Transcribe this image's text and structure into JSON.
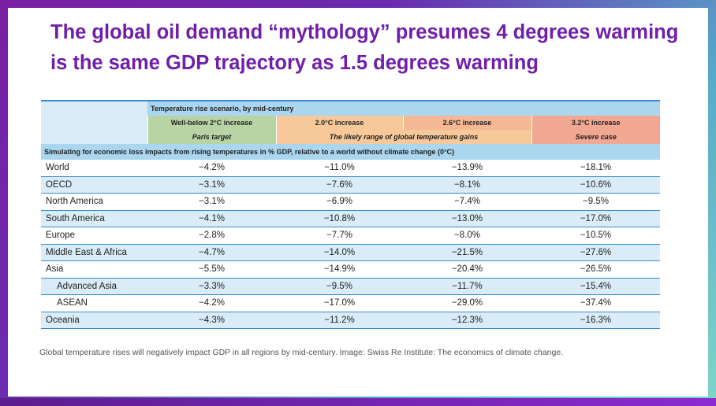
{
  "slide": {
    "title": "The global oil demand “mythology” presumes 4 degrees warming is the same GDP trajectory as 1.5 degrees warming",
    "caption": "Global temperature rises will negatively impact GDP in all regions by mid-century. Image: Swiss Re Institute: The economics of climate change."
  },
  "table": {
    "header_title": "Temperature rise scenario, by mid-century",
    "scenarios": [
      "Well-below 2°C increase",
      "2.0°C increase",
      "2.6°C increase",
      "3.2°C increase"
    ],
    "subheaders": [
      "Paris target",
      "The likely range of global temperature gains",
      "Severe case"
    ],
    "simulation_note": "Simulating for economic loss impacts from rising temperatures in % GDP, relative to a world without climate change (0°C)",
    "rows": [
      {
        "region": "World",
        "values": [
          "−4.2%",
          "−11.0%",
          "−13.9%",
          "−18.1%"
        ]
      },
      {
        "region": "OECD",
        "values": [
          "−3.1%",
          "−7.6%",
          "−8.1%",
          "−10.6%"
        ]
      },
      {
        "region": "North America",
        "values": [
          "−3.1%",
          "−6.9%",
          "−7.4%",
          "−9.5%"
        ]
      },
      {
        "region": "South America",
        "values": [
          "−4.1%",
          "−10.8%",
          "−13.0%",
          "−17.0%"
        ]
      },
      {
        "region": "Europe",
        "values": [
          "−2.8%",
          "−7.7%",
          "−8.0%",
          "−10.5%"
        ]
      },
      {
        "region": "Middle East & Africa",
        "values": [
          "−4.7%",
          "−14.0%",
          "−21.5%",
          "−27.6%"
        ]
      },
      {
        "region": "Asia",
        "values": [
          "−5.5%",
          "−14.9%",
          "−20.4%",
          "−26.5%"
        ]
      },
      {
        "region": "Advanced Asia",
        "values": [
          "−3.3%",
          "−9.5%",
          "−11.7%",
          "−15.4%"
        ]
      },
      {
        "region": "ASEAN",
        "values": [
          "−4.2%",
          "−17.0%",
          "−29.0%",
          "−37.4%"
        ]
      },
      {
        "region": "Oceania",
        "values": [
          "−4.3%",
          "−11.2%",
          "−12.3%",
          "−16.3%"
        ]
      }
    ]
  },
  "colors": {
    "title": "#7020a8",
    "header_blue": "#aad6ef",
    "band_blue": "#d9ecf7",
    "paris_green": "#b8d4a4",
    "likely_orange": "#f7c89a",
    "severe_red": "#f1a792",
    "rule_blue": "#3a8bd1"
  }
}
